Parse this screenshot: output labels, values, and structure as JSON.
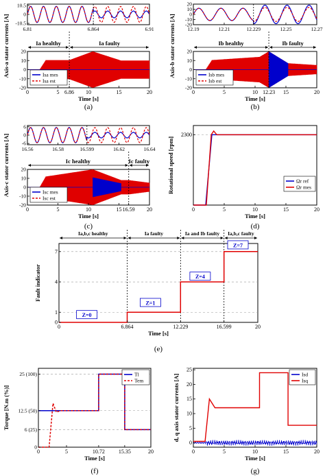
{
  "panels": {
    "a": {
      "caption": "(a)",
      "ylabel": "Axis-a stator currents [A]",
      "xlabel": "Time [s]",
      "zoom": {
        "xticks": [
          "6.81",
          "6.864",
          "6.91"
        ],
        "yticks": [
          "10.5",
          "0",
          "-10.5"
        ]
      },
      "main": {
        "xticks": [
          "0",
          "5",
          "6.86",
          "10",
          "15",
          "20"
        ],
        "yticks": [
          "20",
          "10",
          "0",
          "-10",
          "-20"
        ]
      },
      "regions": [
        "Ia healthy",
        "Ia faulty"
      ],
      "legend": [
        "Isa mes",
        "Isa est"
      ]
    },
    "b": {
      "caption": "(b)",
      "ylabel": "Axis-b stator currents [A]",
      "xlabel": "Time [s]",
      "zoom": {
        "xticks": [
          "12.19",
          "12.21",
          "12.229",
          "12.25",
          "12.27"
        ],
        "yticks": [
          "20",
          "10",
          "0",
          "-10",
          "-20"
        ]
      },
      "main": {
        "xticks": [
          "0",
          "5",
          "10",
          "12.23",
          "15",
          "20"
        ],
        "yticks": [
          "20",
          "10",
          "0",
          "-10",
          "-20"
        ]
      },
      "regions": [
        "Ib healthy",
        "Ib faulty"
      ],
      "legend": [
        "Isb mes",
        "Isb est"
      ]
    },
    "c": {
      "caption": "(c)",
      "ylabel": "Axis-c stator currents [A]",
      "xlabel": "Time [s]",
      "zoom": {
        "xticks": [
          "16.56",
          "16.58",
          "16.599",
          "16.62",
          "16.64"
        ],
        "yticks": [
          "6",
          "0",
          "-6"
        ]
      },
      "main": {
        "xticks": [
          "0",
          "5",
          "10",
          "15",
          "16.59",
          "20"
        ],
        "yticks": [
          "20",
          "10",
          "0",
          "-10",
          "-20"
        ]
      },
      "regions": [
        "Ic healthy",
        "Ic faulty"
      ],
      "legend": [
        "Isc mes",
        "Isc est"
      ]
    },
    "d": {
      "caption": "(d)",
      "ylabel": "Rotational speed [rpm]",
      "xlabel": "Time [s]",
      "xticks": [
        "0",
        "5",
        "10",
        "15",
        "20"
      ],
      "yticks": [
        "2300"
      ],
      "legend": [
        "Ωr ref",
        "Ωr mes"
      ]
    },
    "e": {
      "caption": "(e)",
      "ylabel": "Fault indicator",
      "xlabel": "Time [s]",
      "xticks": [
        "0",
        "6.864",
        "12.229",
        "16.599",
        "20"
      ],
      "yticks": [
        "7",
        "4",
        "1",
        "0"
      ],
      "regions": [
        "Ia,b,c healthy",
        "Ia faulty",
        "Ia and Ib faulty",
        "Ia,b,c faulty"
      ],
      "boxes": [
        "Z=0",
        "Z=1",
        "Z=4",
        "Z=7"
      ]
    },
    "f": {
      "caption": "(f)",
      "ylabel": "Torque [N.m (%)]",
      "xlabel": "Time [s]",
      "xticks": [
        "0",
        "5",
        "10.72",
        "15.35",
        "20"
      ],
      "yticks": [
        "25 (100)",
        "12.5 (50)",
        "6 (25)",
        "0"
      ],
      "legend": [
        "Tl",
        "Tem"
      ]
    },
    "g": {
      "caption": "(g)",
      "ylabel": "d, q axis stator currents [A]",
      "xlabel": "Time [s]",
      "xticks": [
        "0",
        "5",
        "10",
        "15",
        "20"
      ],
      "yticks": [
        "25",
        "20",
        "15",
        "10",
        "5",
        "0"
      ],
      "legend": [
        "Isd",
        "Isq"
      ]
    }
  },
  "colors": {
    "mes": "#0000cc",
    "est": "#e00000",
    "grid": "#999999"
  },
  "chart_data": [
    {
      "id": "a",
      "type": "line",
      "x_range": [
        0,
        20
      ],
      "ylim": [
        -20,
        20
      ],
      "zoom_range": [
        6.81,
        6.91
      ],
      "fault_time": 6.864,
      "envelope": {
        "x": [
          0,
          2,
          3,
          6.86,
          10.72,
          15.35,
          20
        ],
        "amplitude": [
          0,
          0,
          10.5,
          10.5,
          20,
          10,
          10
        ]
      }
    },
    {
      "id": "b",
      "type": "line",
      "x_range": [
        0,
        20
      ],
      "ylim": [
        -20,
        20
      ],
      "zoom_range": [
        12.19,
        12.27
      ],
      "fault_time": 12.229,
      "envelope": {
        "x": [
          0,
          2,
          3,
          10.72,
          12.23,
          15.35,
          20
        ],
        "amplitude": [
          0,
          0,
          10.5,
          14,
          20,
          7,
          5
        ]
      }
    },
    {
      "id": "c",
      "type": "line",
      "x_range": [
        0,
        20
      ],
      "ylim": [
        -20,
        20
      ],
      "zoom_range": [
        16.56,
        16.64
      ],
      "fault_time": 16.599,
      "envelope": {
        "x": [
          0,
          2,
          3,
          10.72,
          15.35,
          16.59,
          20
        ],
        "amplitude": [
          0,
          0,
          12,
          20,
          8,
          8,
          5
        ]
      }
    },
    {
      "id": "d",
      "type": "line",
      "x_range": [
        0,
        20
      ],
      "ylim": [
        0,
        2300
      ],
      "series": [
        {
          "name": "Ωr ref",
          "x": [
            0,
            2,
            3,
            20
          ],
          "y": [
            0,
            0,
            2300,
            2300
          ]
        },
        {
          "name": "Ωr mes",
          "x": [
            0,
            2.1,
            2.9,
            3.3,
            3.8,
            20
          ],
          "y": [
            0,
            0,
            2300,
            2420,
            2300,
            2300
          ]
        }
      ]
    },
    {
      "id": "e",
      "type": "line",
      "x_range": [
        0,
        20
      ],
      "ylim": [
        0,
        7
      ],
      "series": [
        {
          "name": "Z",
          "x": [
            0,
            6.864,
            6.864,
            12.229,
            12.229,
            16.599,
            16.599,
            20
          ],
          "y": [
            0,
            0,
            1,
            1,
            4,
            4,
            7,
            7
          ]
        }
      ]
    },
    {
      "id": "f",
      "type": "line",
      "x_range": [
        0,
        20
      ],
      "ylim": [
        0,
        25
      ],
      "series": [
        {
          "name": "Tl",
          "x": [
            0,
            10.72,
            10.72,
            15.35,
            15.35,
            20
          ],
          "y": [
            12.5,
            12.5,
            25,
            25,
            6,
            6
          ]
        },
        {
          "name": "Tem",
          "x": [
            0,
            1.9,
            2.6,
            3.2,
            3.9,
            10.72,
            10.72,
            15.35,
            15.35,
            20
          ],
          "y": [
            0,
            0,
            15,
            12,
            12.5,
            12.5,
            25,
            25,
            6,
            6
          ]
        }
      ]
    },
    {
      "id": "g",
      "type": "line",
      "x_range": [
        0,
        20
      ],
      "ylim": [
        0,
        25
      ],
      "series": [
        {
          "name": "Isd",
          "x": [
            0,
            20
          ],
          "y": [
            0,
            0
          ]
        },
        {
          "name": "Isq",
          "x": [
            0,
            1.9,
            2.6,
            3.5,
            10.72,
            10.72,
            15.35,
            15.35,
            20
          ],
          "y": [
            0.5,
            0.5,
            15,
            12,
            12,
            24,
            24,
            6,
            6
          ]
        }
      ]
    }
  ]
}
